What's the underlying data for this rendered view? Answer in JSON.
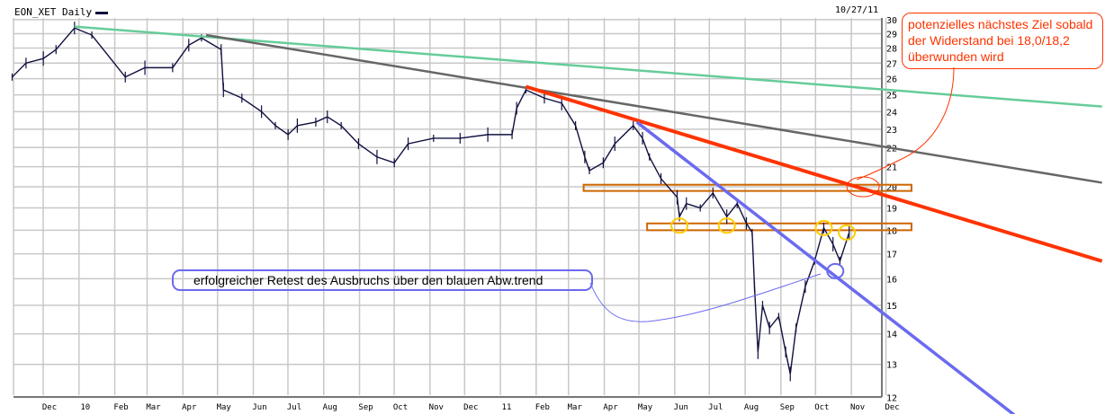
{
  "chart_data": {
    "type": "line",
    "title": "EON_XET Daily",
    "date_label": "10/27/11",
    "y_scale": "log",
    "ylim": [
      12,
      30
    ],
    "y_ticks": [
      30,
      29,
      28,
      27,
      26,
      25,
      24,
      23,
      22,
      21,
      20,
      19,
      18,
      17,
      16,
      15,
      14,
      13,
      12
    ],
    "x_tick_labels": [
      "Dec",
      "10",
      "Feb",
      "Mar",
      "Apr",
      "May",
      "Jun",
      "Jul",
      "Aug",
      "Sep",
      "Oct",
      "Nov",
      "Dec",
      "11",
      "Feb",
      "Mar",
      "Apr",
      "May",
      "Jun",
      "Jul",
      "Aug",
      "Sep",
      "Oct",
      "Nov",
      "Dec"
    ],
    "x_tick_dates": [
      "2009-12-01",
      "2010-01-01",
      "2010-02-01",
      "2010-03-01",
      "2010-04-01",
      "2010-05-01",
      "2010-06-01",
      "2010-07-01",
      "2010-08-01",
      "2010-09-01",
      "2010-10-01",
      "2010-11-01",
      "2010-12-01",
      "2011-01-01",
      "2011-02-01",
      "2011-03-01",
      "2011-04-01",
      "2011-05-01",
      "2011-06-01",
      "2011-07-01",
      "2011-08-01",
      "2011-09-01",
      "2011-10-01",
      "2011-11-01",
      "2011-12-01"
    ],
    "grid": true,
    "series": [
      {
        "color": "#101040",
        "points": [
          [
            "2009-11-01",
            26.1
          ],
          [
            "2009-11-13",
            27.0
          ],
          [
            "2009-11-28",
            27.3
          ],
          [
            "2009-12-09",
            27.9
          ],
          [
            "2009-12-25",
            29.4
          ],
          [
            "2010-01-09",
            28.9
          ],
          [
            "2010-02-07",
            26.1
          ],
          [
            "2010-02-24",
            26.7
          ],
          [
            "2010-03-20",
            26.7
          ],
          [
            "2010-04-03",
            28.2
          ],
          [
            "2010-04-14",
            28.7
          ],
          [
            "2010-05-01",
            27.9
          ],
          [
            "2010-05-03",
            25.3
          ],
          [
            "2010-05-19",
            24.8
          ],
          [
            "2010-06-05",
            24.0
          ],
          [
            "2010-06-17",
            23.2
          ],
          [
            "2010-06-28",
            22.7
          ],
          [
            "2010-07-06",
            23.2
          ],
          [
            "2010-07-22",
            23.4
          ],
          [
            "2010-08-01",
            23.7
          ],
          [
            "2010-08-13",
            23.2
          ],
          [
            "2010-08-28",
            22.2
          ],
          [
            "2010-09-13",
            21.5
          ],
          [
            "2010-09-28",
            21.2
          ],
          [
            "2010-10-10",
            22.2
          ],
          [
            "2010-11-01",
            22.5
          ],
          [
            "2010-11-24",
            22.5
          ],
          [
            "2010-12-18",
            22.7
          ],
          [
            "2011-01-08",
            22.7
          ],
          [
            "2011-01-12",
            24.2
          ],
          [
            "2011-01-20",
            25.3
          ],
          [
            "2011-02-05",
            24.8
          ],
          [
            "2011-02-20",
            24.5
          ],
          [
            "2011-03-04",
            23.2
          ],
          [
            "2011-03-12",
            21.5
          ],
          [
            "2011-03-16",
            20.8
          ],
          [
            "2011-03-28",
            21.2
          ],
          [
            "2011-04-07",
            22.2
          ],
          [
            "2011-04-23",
            23.2
          ],
          [
            "2011-05-01",
            22.5
          ],
          [
            "2011-05-07",
            21.5
          ],
          [
            "2011-05-17",
            20.4
          ],
          [
            "2011-05-31",
            19.5
          ],
          [
            "2011-06-02",
            18.6
          ],
          [
            "2011-06-08",
            19.2
          ],
          [
            "2011-06-20",
            19.0
          ],
          [
            "2011-07-01",
            19.7
          ],
          [
            "2011-07-13",
            18.6
          ],
          [
            "2011-07-22",
            19.2
          ],
          [
            "2011-07-30",
            18.3
          ],
          [
            "2011-08-04",
            17.9
          ],
          [
            "2011-08-06",
            15.7
          ],
          [
            "2011-08-09",
            13.4
          ],
          [
            "2011-08-13",
            15.0
          ],
          [
            "2011-08-19",
            14.2
          ],
          [
            "2011-08-27",
            14.6
          ],
          [
            "2011-09-02",
            13.4
          ],
          [
            "2011-09-06",
            12.7
          ],
          [
            "2011-09-11",
            14.2
          ],
          [
            "2011-09-19",
            15.7
          ],
          [
            "2011-09-27",
            16.7
          ],
          [
            "2011-10-05",
            18.1
          ],
          [
            "2011-10-13",
            17.4
          ],
          [
            "2011-10-19",
            16.7
          ],
          [
            "2011-10-27",
            17.9
          ]
        ]
      }
    ],
    "trendlines": [
      {
        "color": "#66cc99",
        "from": [
          "2009-12-25",
          29.5
        ],
        "to": [
          "2012-06-02",
          24.3
        ]
      },
      {
        "color": "#666666",
        "from": [
          "2010-04-18",
          28.9
        ],
        "to": [
          "2012-06-02",
          20.2
        ]
      },
      {
        "color": "#ff3300",
        "from": [
          "2011-01-20",
          25.5
        ],
        "to": [
          "2012-06-02",
          16.7
        ]
      },
      {
        "color": "#6a6af0",
        "from": [
          "2011-04-26",
          23.4
        ],
        "to": [
          "2012-03-18",
          11.5
        ]
      }
    ],
    "zones": [
      {
        "color": "#cc6600",
        "from": "2011-03-11",
        "to": "2011-12-20",
        "low": 19.8,
        "high": 20.1
      },
      {
        "color": "#cc6600",
        "from": "2011-05-05",
        "to": "2011-12-20",
        "low": 18.0,
        "high": 18.3
      }
    ],
    "markers": [
      {
        "color": "#ffcc00",
        "date": "2011-06-02",
        "price": 18.2
      },
      {
        "color": "#ffcc00",
        "date": "2011-07-13",
        "price": 18.2
      },
      {
        "color": "#ffcc00",
        "date": "2011-10-05",
        "price": 18.1
      },
      {
        "color": "#ffcc00",
        "date": "2011-10-25",
        "price": 17.9
      },
      {
        "color": "#6a6af0",
        "date": "2011-10-15",
        "price": 16.3
      },
      {
        "color": "#ff3300",
        "date": "2011-11-08",
        "price": 20.0
      }
    ],
    "annotations": [
      {
        "color": "#ff3300",
        "text_lines": [
          "potenzielles nächstes Ziel sobald",
          "der Widerstand bei 18,0/18,2",
          "überwunden wird"
        ]
      },
      {
        "color": "#6a6af0",
        "text": "erfolgreicher Retest des Ausbruchs über den  blauen Abw.trend"
      }
    ]
  }
}
